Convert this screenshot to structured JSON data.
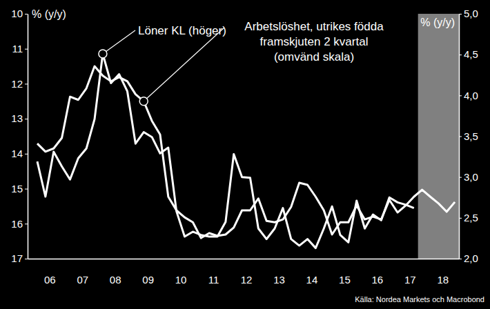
{
  "chart_data": {
    "type": "line",
    "y_label": "% (y/y)",
    "y2_label": "% (y/y)",
    "source": "Källa: Nordea Markets och Macrobond",
    "x": [
      2006.125,
      2006.375,
      2006.625,
      2006.875,
      2007.125,
      2007.375,
      2007.625,
      2007.875,
      2008.125,
      2008.375,
      2008.625,
      2008.875,
      2009.125,
      2009.375,
      2009.625,
      2009.875,
      2010.125,
      2010.375,
      2010.625,
      2010.875,
      2011.125,
      2011.375,
      2011.625,
      2011.875,
      2012.125,
      2012.375,
      2012.625,
      2012.875,
      2013.125,
      2013.375,
      2013.625,
      2013.875,
      2014.125,
      2014.375,
      2014.625,
      2014.875,
      2015.125,
      2015.375,
      2015.625,
      2015.875,
      2016.125,
      2016.375,
      2016.625,
      2016.875,
      2017.125,
      2017.375,
      2017.625,
      2017.875,
      2018.125,
      2018.375,
      2018.625,
      2018.875
    ],
    "series": [
      {
        "axis": "y2",
        "color": "#ffffff",
        "values": [
          3.19,
          2.76,
          3.31,
          3.13,
          2.97,
          3.23,
          3.35,
          3.71,
          4.51,
          4.15,
          4.26,
          4.05,
          3.41,
          3.55,
          3.49,
          3.29,
          3.36,
          2.58,
          2.27,
          2.33,
          2.29,
          2.27,
          2.27,
          2.45,
          3.28,
          3.0,
          2.99,
          2.37,
          2.24,
          2.37,
          2.62,
          2.24,
          2.16,
          2.24,
          2.13,
          2.37,
          2.64,
          2.29,
          2.2,
          2.71,
          2.37,
          2.54,
          2.47,
          2.75,
          2.69,
          2.66,
          2.62,
          null,
          null,
          null,
          null,
          null
        ]
      },
      {
        "color": "#ffffff",
        "values": [
          13.71,
          13.94,
          13.85,
          13.55,
          12.37,
          12.46,
          12.13,
          11.5,
          11.77,
          11.93,
          11.81,
          11.93,
          12.3,
          12.5,
          13.06,
          13.45,
          15.23,
          15.62,
          15.82,
          15.96,
          16.41,
          16.27,
          16.35,
          16.31,
          16.11,
          15.62,
          15.62,
          15.28,
          15.92,
          15.96,
          15.88,
          15.52,
          14.83,
          14.89,
          15.23,
          15.62,
          16.31,
          15.96,
          15.96,
          15.48,
          15.88,
          15.8,
          15.88,
          15.32,
          15.68,
          15.48,
          15.23,
          15.03,
          15.23,
          15.42,
          15.66,
          15.38
        ]
      }
    ],
    "annotations": [
      {
        "text": [
          "Löner KL (höger)"
        ],
        "x": 2008.125,
        "y": 4.51,
        "axis": "y2"
      },
      {
        "text": [
          "Arbetslöshet, utrikes födda",
          "framskjuten 2 kvartal",
          "(omvänd skala)"
        ],
        "x": 2009.375,
        "y": 12.5
      }
    ],
    "shaded_x": [
      2017.75,
      2019.0
    ],
    "xlim": [
      2005.83,
      2019.0
    ],
    "xticks": [
      {
        "value": 2006.5,
        "label": "06"
      },
      {
        "value": 2007.5,
        "label": "07"
      },
      {
        "value": 2008.5,
        "label": "08"
      },
      {
        "value": 2009.5,
        "label": "09"
      },
      {
        "value": 2010.5,
        "label": "10"
      },
      {
        "value": 2011.5,
        "label": "11"
      },
      {
        "value": 2012.5,
        "label": "12"
      },
      {
        "value": 2013.5,
        "label": "13"
      },
      {
        "value": 2014.5,
        "label": "14"
      },
      {
        "value": 2015.5,
        "label": "15"
      },
      {
        "value": 2016.5,
        "label": "16"
      },
      {
        "value": 2017.5,
        "label": "17"
      },
      {
        "value": 2018.5,
        "label": "18"
      }
    ],
    "ylim": [
      17,
      10
    ],
    "yticks": [
      10,
      11,
      12,
      13,
      14,
      15,
      16,
      17
    ],
    "y2lim": [
      2.0,
      5.0
    ],
    "y2ticks": [
      {
        "value": 2.0,
        "label": "2,0"
      },
      {
        "value": 2.5,
        "label": "2,5"
      },
      {
        "value": 3.0,
        "label": "3,0"
      },
      {
        "value": 3.5,
        "label": "3,5"
      },
      {
        "value": 4.0,
        "label": "4,0"
      },
      {
        "value": 4.5,
        "label": "4,5"
      },
      {
        "value": 5.0,
        "label": "5,0"
      }
    ],
    "grid": false
  }
}
